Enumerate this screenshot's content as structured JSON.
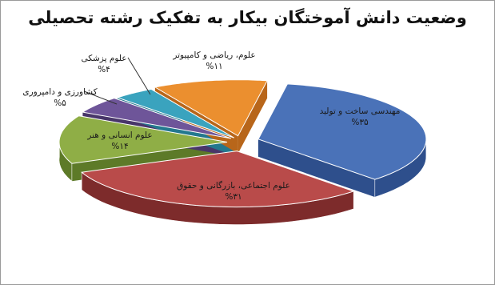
{
  "chart_data": {
    "type": "pie",
    "title": "وضعیت دانش آموختگان بیکار به تفکیک رشته تحصیلی",
    "categories": [
      "مهندسی ساخت و تولید",
      "علوم اجتماعی، بازرگانی و حقوق",
      "علوم انسانی و هنر",
      "کشاورزی و دامپروری",
      "علوم پزشکی",
      "علوم، ریاضی و کامپیوتر"
    ],
    "values": [
      35,
      31,
      14,
      5,
      4,
      11
    ],
    "value_labels": [
      "%۳۵",
      "%۳۱",
      "%۱۴",
      "%۵",
      "%۴",
      "%۱۱"
    ],
    "colors": [
      "#4a72b8",
      "#b94b4a",
      "#8fae46",
      "#6e5599",
      "#3aa3be",
      "#eb8f2f"
    ],
    "side_colors": [
      "#2e4f8c",
      "#7d2b2b",
      "#5d7a28",
      "#483669",
      "#24788e",
      "#b8661a"
    ]
  }
}
